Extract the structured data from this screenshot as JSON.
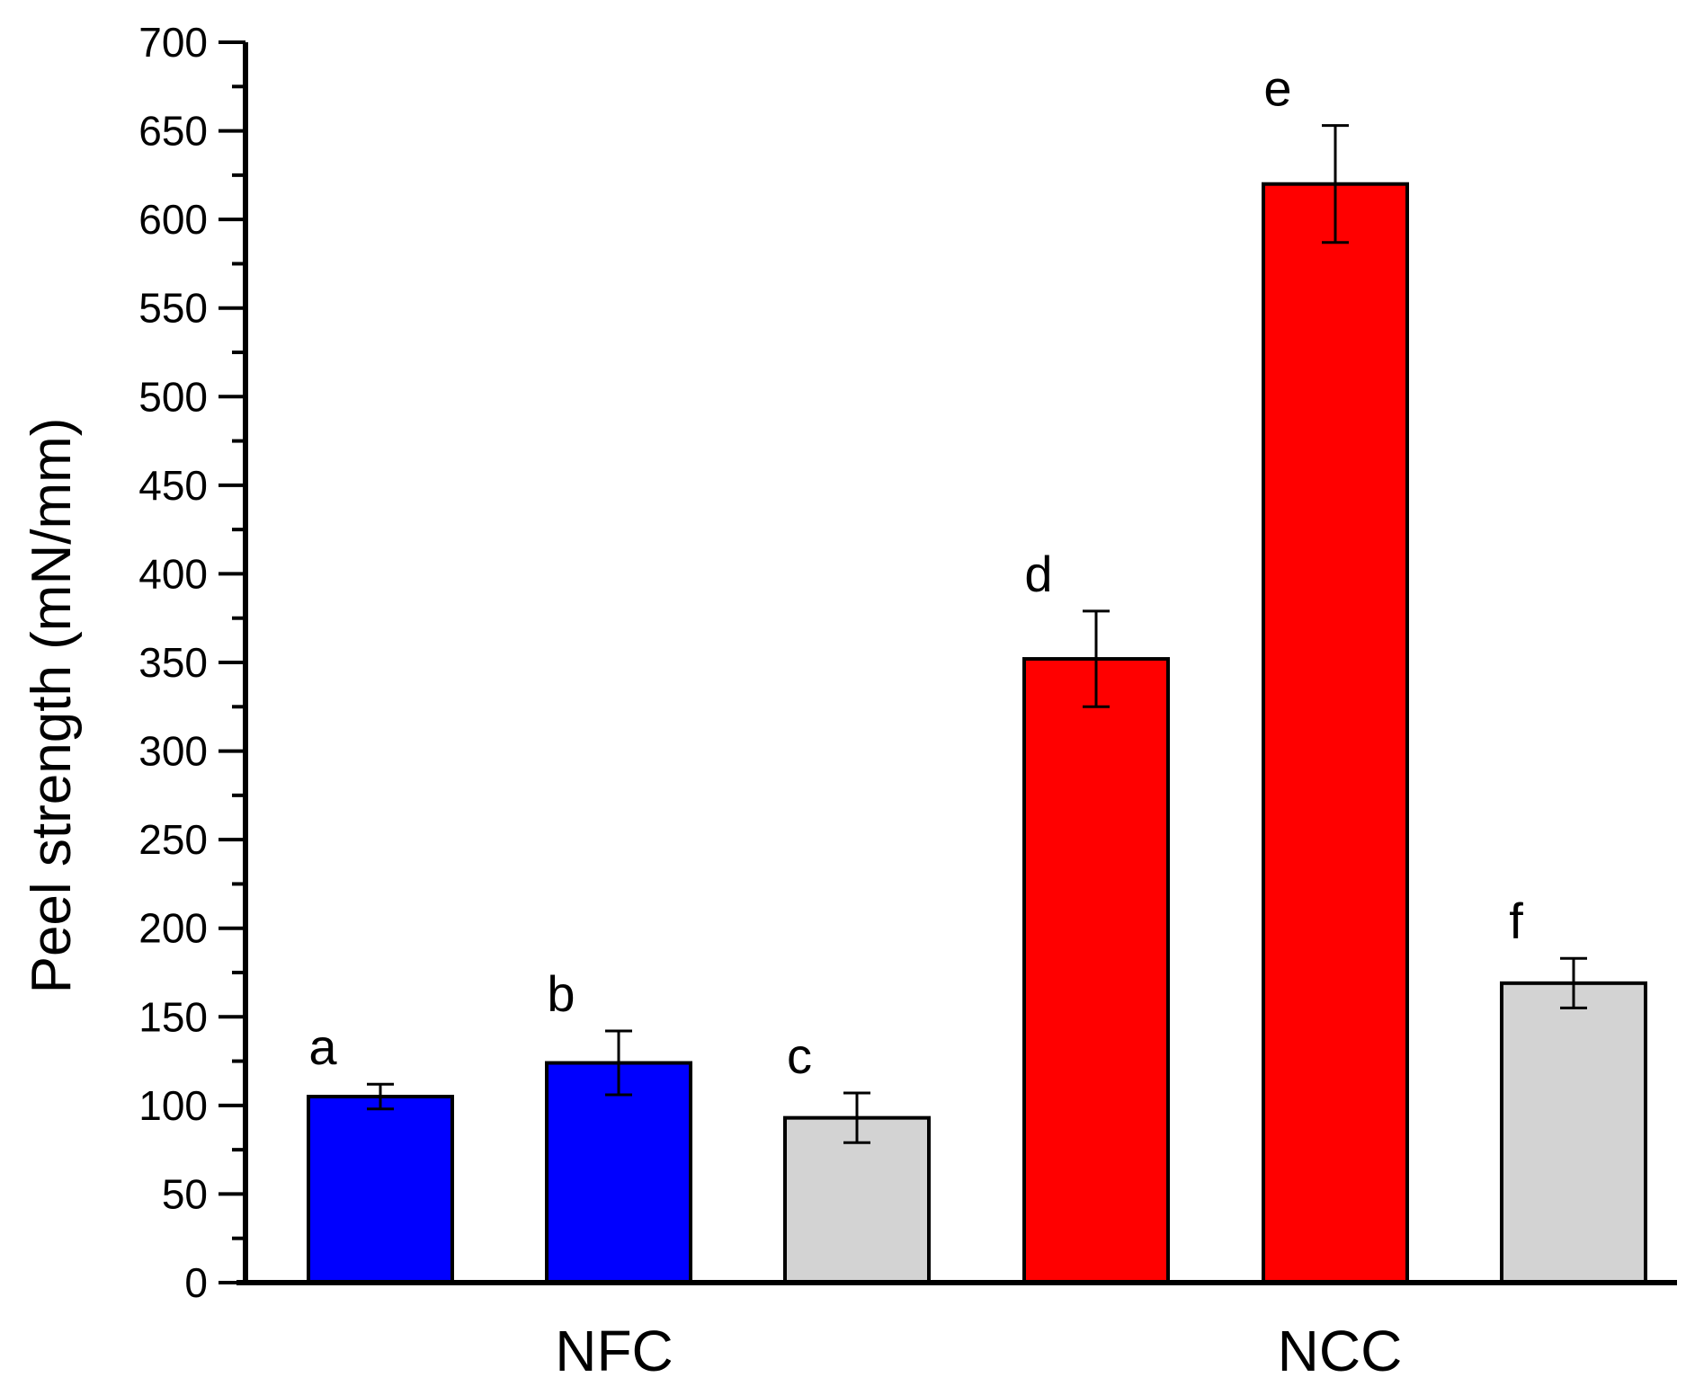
{
  "chart_data": {
    "type": "bar",
    "title": "",
    "xlabel": "",
    "ylabel": "Peel strength (mN/mm)",
    "ylim": [
      0,
      700
    ],
    "y_major_step": 50,
    "y_minor_step": 25,
    "y_ticks": [
      "0",
      "50",
      "100",
      "150",
      "200",
      "250",
      "300",
      "350",
      "400",
      "450",
      "500",
      "550",
      "600",
      "650",
      "700"
    ],
    "groups": [
      {
        "name": "NFC",
        "bar_indices": [
          0,
          1,
          2
        ]
      },
      {
        "name": "NCC",
        "bar_indices": [
          3,
          4,
          5
        ]
      }
    ],
    "bars": [
      {
        "label": "a",
        "value": 105,
        "error": 7,
        "color": "#0000ff"
      },
      {
        "label": "b",
        "value": 124,
        "error": 18,
        "color": "#0000ff"
      },
      {
        "label": "c",
        "value": 93,
        "error": 14,
        "color": "#d3d3d3"
      },
      {
        "label": "d",
        "value": 352,
        "error": 27,
        "color": "#ff0000"
      },
      {
        "label": "e",
        "value": 620,
        "error": 33,
        "color": "#ff0000"
      },
      {
        "label": "f",
        "value": 169,
        "error": 14,
        "color": "#d3d3d3"
      }
    ],
    "grid": false,
    "legend": "none"
  }
}
